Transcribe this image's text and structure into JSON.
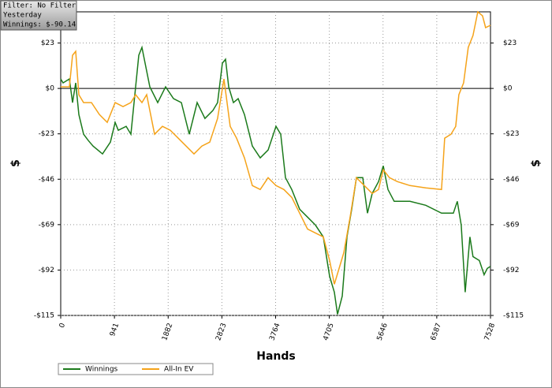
{
  "info": {
    "lines": [
      "Filter: No Filter",
      "Yesterday",
      "Winnings: $-90.14"
    ]
  },
  "chart_data": {
    "type": "line",
    "xlabel": "Hands",
    "ylabel": "$",
    "grid": true,
    "xlim": [
      0,
      7528
    ],
    "xticks": [
      0,
      941,
      1882,
      2823,
      3764,
      4705,
      5646,
      6587,
      7528
    ],
    "ylim": [
      -115,
      38.8
    ],
    "yticks": [
      {
        "value": -115,
        "label": "-$115"
      },
      {
        "value": -92,
        "label": "-$92"
      },
      {
        "value": -69,
        "label": "-$69"
      },
      {
        "value": -46,
        "label": "-$46"
      },
      {
        "value": -23,
        "label": "-$23"
      },
      {
        "value": 0,
        "label": "$0"
      },
      {
        "value": 23,
        "label": "$23"
      }
    ],
    "series": [
      {
        "name": "Winnings",
        "color": "#1b7a1b",
        "x": [
          0,
          41,
          152,
          207,
          262,
          318,
          401,
          483,
          566,
          732,
          870,
          953,
          1008,
          1146,
          1229,
          1312,
          1367,
          1423,
          1478,
          1561,
          1699,
          1837,
          1975,
          2113,
          2251,
          2389,
          2527,
          2665,
          2748,
          2831,
          2887,
          2942,
          3025,
          3108,
          3219,
          3357,
          3495,
          3633,
          3771,
          3854,
          3937,
          4047,
          4185,
          4324,
          4462,
          4600,
          4710,
          4793,
          4848,
          4931,
          5014,
          5097,
          5180,
          5290,
          5373,
          5456,
          5566,
          5649,
          5732,
          5842,
          6118,
          6394,
          6670,
          6877,
          6946,
          7015,
          7084,
          7167,
          7222,
          7333,
          7416,
          7471,
          7528
        ],
        "values": [
          4.8,
          2.8,
          4.8,
          -7.2,
          2.8,
          -13.2,
          -23.2,
          -26.4,
          -29.2,
          -33.2,
          -27.2,
          -17.2,
          -21.2,
          -19.2,
          -23.2,
          0.8,
          16.8,
          20.8,
          12.8,
          0.8,
          -7.2,
          0.8,
          -5.2,
          -7.2,
          -23.2,
          -7.2,
          -15.2,
          -11.2,
          -7.2,
          12.8,
          14.8,
          0.8,
          -7.2,
          -5.2,
          -13.2,
          -29.2,
          -35.2,
          -31.2,
          -19.2,
          -23.2,
          -45.2,
          -51.2,
          -61.2,
          -65.2,
          -69.2,
          -75.2,
          -95.2,
          -103.2,
          -114.4,
          -105.2,
          -75.2,
          -61.2,
          -45.2,
          -45.2,
          -63.2,
          -53.2,
          -47.2,
          -39.2,
          -51.2,
          -57.2,
          -57.2,
          -59.2,
          -63.2,
          -63.2,
          -57.2,
          -69.2,
          -103.2,
          -75.2,
          -85.2,
          -87.2,
          -94.4,
          -91.2,
          -90.14
        ]
      },
      {
        "name": "All-In EV",
        "color": "#f5a31a",
        "x": [
          0,
          152,
          207,
          262,
          318,
          401,
          539,
          677,
          815,
          953,
          1091,
          1229,
          1312,
          1423,
          1506,
          1644,
          1782,
          1920,
          2058,
          2196,
          2334,
          2472,
          2610,
          2748,
          2859,
          2969,
          3080,
          3219,
          3357,
          3495,
          3633,
          3771,
          3909,
          4047,
          4185,
          4324,
          4462,
          4600,
          4710,
          4793,
          4876,
          4959,
          5070,
          5180,
          5318,
          5456,
          5566,
          5649,
          5759,
          5898,
          6118,
          6394,
          6670,
          6725,
          6836,
          6919,
          6974,
          7057,
          7139,
          7222,
          7305,
          7388,
          7443,
          7528
        ],
        "values": [
          0.8,
          0.8,
          16.8,
          18.8,
          -3.2,
          -7.2,
          -7.2,
          -13.2,
          -17.2,
          -7.2,
          -9.2,
          -7.2,
          -3.2,
          -7.2,
          -3.2,
          -23.2,
          -19.2,
          -21.2,
          -25.2,
          -29.2,
          -33.2,
          -29.2,
          -27.2,
          -15.2,
          4.8,
          -19.2,
          -25.2,
          -35.2,
          -49.2,
          -51.2,
          -45.2,
          -49.2,
          -51.2,
          -55.2,
          -63.2,
          -71.2,
          -73.2,
          -75.2,
          -87.2,
          -99.2,
          -91.2,
          -83.2,
          -65.2,
          -45.2,
          -49.2,
          -53.2,
          -51.2,
          -41.2,
          -45.2,
          -47.2,
          -49.2,
          -50.4,
          -51.2,
          -25.2,
          -23.2,
          -19.2,
          -3.2,
          2.8,
          20.8,
          26.8,
          38.8,
          36.8,
          30.8,
          32
        ]
      }
    ]
  }
}
